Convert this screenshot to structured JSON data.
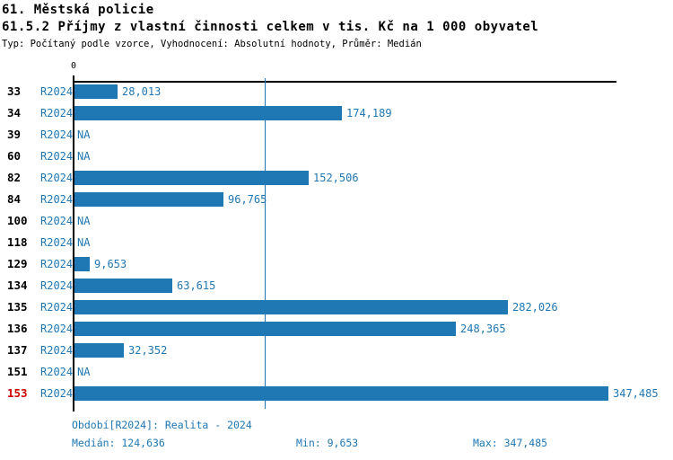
{
  "header": {
    "title": "61. Městská policie",
    "subtitle": "61.5.2 Příjmy z vlastní činnosti celkem v tis. Kč na 1 000 obyvatel",
    "meta": "Typ: Počítaný podle vzorce, Vyhodnocení: Absolutní hodnoty, Průměr: Medián"
  },
  "chart_data": {
    "type": "bar",
    "orientation": "horizontal",
    "title": "61. Městská policie",
    "subtitle": "61.5.2 Příjmy z vlastní činnosti celkem v tis. Kč na 1 000 obyvatel",
    "axis_zero_label": "0",
    "series_label": "R2024",
    "categories": [
      "33",
      "34",
      "39",
      "60",
      "82",
      "84",
      "100",
      "118",
      "129",
      "134",
      "135",
      "136",
      "137",
      "151",
      "153"
    ],
    "values": [
      28013,
      174189,
      null,
      null,
      152506,
      96765,
      null,
      null,
      9653,
      63615,
      282026,
      248365,
      32352,
      null,
      347485
    ],
    "value_labels": [
      "28,013",
      "174,189",
      "NA",
      "NA",
      "152,506",
      "96,765",
      "NA",
      "NA",
      "9,653",
      "63,615",
      "282,026",
      "248,365",
      "32,352",
      "NA",
      "347,485"
    ],
    "na_label": "NA",
    "highlighted_category": "153",
    "median_value": 124636,
    "xlim": [
      0,
      354000
    ],
    "grid": false,
    "legend": false,
    "colors": {
      "bar": "#1f77b4",
      "median_line": "#1f77b4",
      "highlight_code": "#cc0000",
      "axis": "#000000"
    }
  },
  "footer": {
    "period": "Období[R2024]: Realita - 2024",
    "median": "Medián: 124,636",
    "min": "Min: 9,653",
    "max": "Max: 347,485"
  }
}
